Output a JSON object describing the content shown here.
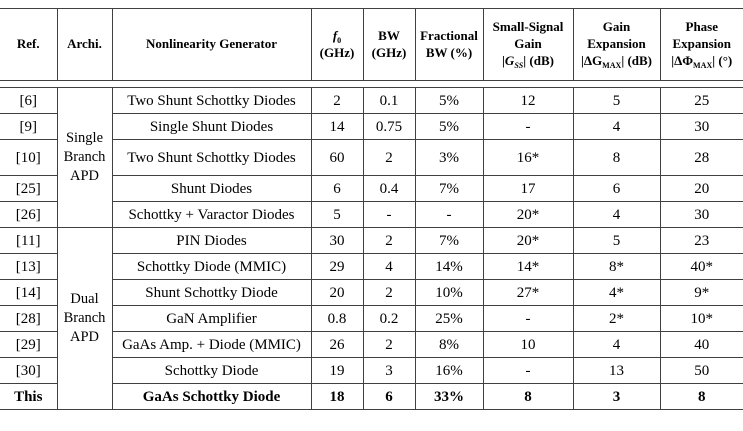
{
  "table": {
    "header": {
      "ref": "Ref.",
      "archi": "Archi.",
      "generator": "Nonlinearity Generator",
      "f0": {
        "sym": "f",
        "sub": "0",
        "unit": "(GHz)"
      },
      "bw": {
        "line1": "BW",
        "line2": "(GHz)"
      },
      "fbw": {
        "line1": "Fractional",
        "line2": "BW (%)"
      },
      "ssg": {
        "line1": "Small-Signal",
        "line2": "Gain",
        "pre": "|",
        "sym": "G",
        "sub": "SS",
        "post": "| (dB)"
      },
      "ge": {
        "line1": "Gain",
        "line2": "Expansion",
        "pre": "|ΔG",
        "sub": "MAX",
        "post": "| (dB)"
      },
      "pe": {
        "line1": "Phase",
        "line2": "Expansion",
        "pre": "|ΔΦ",
        "sub": "MAX",
        "post": "| (°)"
      }
    },
    "archi_groups": [
      {
        "label": "Single Branch APD",
        "span": 5
      },
      {
        "label": "Dual Branch APD",
        "span": 7
      }
    ],
    "rows": [
      {
        "ref": "[6]",
        "generator": "Two Shunt Schottky Diodes",
        "f0": "2",
        "bw": "0.1",
        "fbw": "5%",
        "gss": "12",
        "gexp": "5",
        "pexp": "25",
        "bold": false
      },
      {
        "ref": "[9]",
        "generator": "Single Shunt Diodes",
        "f0": "14",
        "bw": "0.75",
        "fbw": "5%",
        "gss": "-",
        "gexp": "4",
        "pexp": "30",
        "bold": false
      },
      {
        "ref": "[10]",
        "generator": "Two Shunt Schottky Diodes",
        "f0": "60",
        "bw": "2",
        "fbw": "3%",
        "gss": "16*",
        "gexp": "8",
        "pexp": "28",
        "bold": false
      },
      {
        "ref": "[25]",
        "generator": "Shunt Diodes",
        "f0": "6",
        "bw": "0.4",
        "fbw": "7%",
        "gss": "17",
        "gexp": "6",
        "pexp": "20",
        "bold": false
      },
      {
        "ref": "[26]",
        "generator": "Schottky + Varactor Diodes",
        "f0": "5",
        "bw": "-",
        "fbw": "-",
        "gss": "20*",
        "gexp": "4",
        "pexp": "30",
        "bold": false
      },
      {
        "ref": "[11]",
        "generator": "PIN Diodes",
        "f0": "30",
        "bw": "2",
        "fbw": "7%",
        "gss": "20*",
        "gexp": "5",
        "pexp": "23",
        "bold": false
      },
      {
        "ref": "[13]",
        "generator": "Schottky Diode (MMIC)",
        "f0": "29",
        "bw": "4",
        "fbw": "14%",
        "gss": "14*",
        "gexp": "8*",
        "pexp": "40*",
        "bold": false
      },
      {
        "ref": "[14]",
        "generator": "Shunt Schottky Diode",
        "f0": "20",
        "bw": "2",
        "fbw": "10%",
        "gss": "27*",
        "gexp": "4*",
        "pexp": "9*",
        "bold": false
      },
      {
        "ref": "[28]",
        "generator": "GaN Amplifier",
        "f0": "0.8",
        "bw": "0.2",
        "fbw": "25%",
        "gss": "-",
        "gexp": "2*",
        "pexp": "10*",
        "bold": false
      },
      {
        "ref": "[29]",
        "generator": "GaAs Amp. + Diode (MMIC)",
        "f0": "26",
        "bw": "2",
        "fbw": "8%",
        "gss": "10",
        "gexp": "4",
        "pexp": "40",
        "bold": false
      },
      {
        "ref": "[30]",
        "generator": "Schottky Diode",
        "f0": "19",
        "bw": "3",
        "fbw": "16%",
        "gss": "-",
        "gexp": "13",
        "pexp": "50",
        "bold": false
      },
      {
        "ref": "This",
        "generator": "GaAs Schottky Diode",
        "f0": "18",
        "bw": "6",
        "fbw": "33%",
        "gss": "8",
        "gexp": "3",
        "pexp": "8",
        "bold": true
      }
    ],
    "border_color": "#404040"
  }
}
